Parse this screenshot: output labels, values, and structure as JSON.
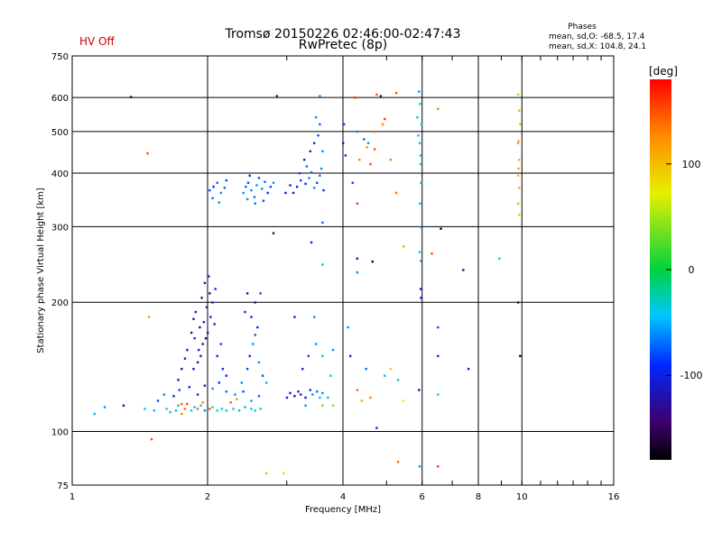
{
  "chart_data": {
    "type": "scatter",
    "title": "Tromsø 20150226 02:46:00-02:47:43",
    "subtitle": "RwPretec (8p)",
    "status_text": "HV Off",
    "status_color": "#cc0000",
    "xlabel": "Frequency [MHz]",
    "ylabel": "Stationary phase Virtual Height [km]",
    "x_scale": "log",
    "y_scale": "log",
    "xlim": [
      1,
      16
    ],
    "ylim": [
      75,
      750
    ],
    "x_ticks": [
      1,
      2,
      4,
      6,
      8,
      10,
      16
    ],
    "x_ticks_major": [
      2,
      4,
      6,
      8,
      10
    ],
    "y_ticks": [
      75,
      100,
      200,
      300,
      400,
      500,
      600,
      750
    ],
    "grid": true,
    "info": {
      "heading": "Phases",
      "line1": "mean, sd,O: -68.5, 17.4",
      "line2": "mean, sd,X: 104.8, 24.1"
    },
    "colorbar": {
      "label": "[deg]",
      "range": [
        -180,
        180
      ],
      "ticks": [
        100,
        0,
        -100
      ]
    },
    "series": [
      {
        "points": [
          [
            1.62,
            113,
            -40
          ],
          [
            1.65,
            111,
            -30
          ],
          [
            1.7,
            112,
            -45
          ],
          [
            1.72,
            115,
            -20
          ],
          [
            1.75,
            110,
            130
          ],
          [
            1.78,
            113,
            140
          ],
          [
            1.8,
            116,
            150
          ],
          [
            1.84,
            112,
            -40
          ],
          [
            1.87,
            114,
            -50
          ],
          [
            1.9,
            113,
            140
          ],
          [
            1.93,
            115,
            -30
          ],
          [
            1.97,
            112,
            -60
          ],
          [
            2.02,
            113,
            150
          ],
          [
            2.05,
            114,
            -40
          ],
          [
            2.1,
            112,
            -35
          ],
          [
            2.15,
            113,
            -30
          ],
          [
            2.2,
            112,
            -40
          ],
          [
            2.28,
            113,
            -35
          ],
          [
            2.35,
            112,
            -30
          ],
          [
            2.42,
            114,
            -50
          ],
          [
            2.5,
            113,
            -40
          ],
          [
            2.55,
            112,
            -35
          ],
          [
            2.62,
            113,
            -30
          ],
          [
            1.55,
            118,
            -80
          ],
          [
            1.6,
            122,
            -60
          ],
          [
            1.68,
            121,
            -100
          ],
          [
            1.73,
            125,
            -80
          ],
          [
            1.82,
            127,
            -100
          ],
          [
            1.9,
            122,
            -90
          ],
          [
            1.97,
            128,
            -110
          ],
          [
            2.05,
            126,
            -60
          ],
          [
            2.12,
            130,
            -90
          ],
          [
            2.2,
            124,
            -70
          ],
          [
            2.3,
            122,
            -60
          ],
          [
            2.4,
            124,
            -80
          ],
          [
            2.5,
            118,
            -55
          ],
          [
            2.6,
            121,
            -70
          ],
          [
            1.12,
            110,
            -50
          ],
          [
            1.18,
            114,
            -60
          ],
          [
            1.3,
            115,
            -120
          ],
          [
            1.45,
            113,
            -40
          ],
          [
            1.52,
            112,
            -50
          ],
          [
            1.86,
            140,
            -120
          ],
          [
            1.9,
            145,
            -130
          ],
          [
            1.93,
            150,
            -100
          ],
          [
            1.95,
            160,
            -120
          ],
          [
            1.98,
            165,
            -140
          ],
          [
            2.0,
            170,
            -110
          ],
          [
            1.92,
            175,
            -130
          ],
          [
            1.96,
            180,
            -100
          ],
          [
            2.03,
            185,
            -120
          ],
          [
            1.88,
            190,
            -110
          ],
          [
            1.99,
            195,
            -130
          ],
          [
            2.05,
            200,
            -90
          ],
          [
            1.94,
            205,
            -110
          ],
          [
            2.02,
            210,
            -130
          ],
          [
            2.08,
            215,
            -100
          ],
          [
            1.97,
            222,
            -120
          ],
          [
            2.01,
            230,
            -110
          ],
          [
            1.91,
            155,
            -90
          ],
          [
            1.87,
            165,
            -100
          ],
          [
            1.84,
            170,
            -120
          ],
          [
            1.86,
            183,
            -110
          ],
          [
            2.1,
            150,
            -100
          ],
          [
            2.14,
            160,
            -80
          ],
          [
            2.07,
            178,
            -100
          ],
          [
            1.8,
            155,
            -120
          ],
          [
            1.78,
            148,
            -110
          ],
          [
            1.75,
            140,
            -130
          ],
          [
            1.72,
            132,
            -120
          ],
          [
            2.16,
            140,
            -90
          ],
          [
            2.2,
            135,
            -110
          ],
          [
            2.45,
            140,
            -80
          ],
          [
            2.48,
            150,
            -90
          ],
          [
            2.52,
            160,
            -60
          ],
          [
            2.55,
            168,
            -70
          ],
          [
            2.58,
            175,
            -90
          ],
          [
            2.5,
            185,
            -100
          ],
          [
            2.55,
            200,
            -110
          ],
          [
            2.62,
            210,
            -80
          ],
          [
            2.45,
            210,
            -120
          ],
          [
            2.6,
            145,
            -60
          ],
          [
            2.65,
            135,
            -80
          ],
          [
            2.38,
            130,
            -60
          ],
          [
            2.7,
            130,
            -50
          ],
          [
            2.42,
            190,
            -100
          ],
          [
            3.0,
            120,
            -100
          ],
          [
            3.05,
            123,
            -110
          ],
          [
            3.12,
            121,
            -120
          ],
          [
            3.18,
            124,
            -100
          ],
          [
            3.22,
            122,
            -110
          ],
          [
            3.3,
            120,
            -120
          ],
          [
            3.38,
            125,
            -90
          ],
          [
            3.42,
            122,
            -60
          ],
          [
            3.5,
            124,
            -70
          ],
          [
            3.55,
            120,
            -50
          ],
          [
            3.6,
            123,
            -60
          ],
          [
            3.25,
            140,
            -100
          ],
          [
            3.35,
            150,
            -80
          ],
          [
            3.48,
            160,
            -60
          ],
          [
            3.6,
            150,
            -40
          ],
          [
            3.7,
            120,
            -20
          ],
          [
            3.12,
            185,
            -100
          ],
          [
            3.45,
            185,
            -60
          ],
          [
            2.02,
            365,
            -80
          ],
          [
            2.06,
            372,
            -90
          ],
          [
            2.1,
            380,
            -70
          ],
          [
            2.14,
            360,
            -60
          ],
          [
            2.18,
            370,
            -70
          ],
          [
            2.2,
            385,
            -80
          ],
          [
            2.05,
            350,
            -70
          ],
          [
            2.12,
            342,
            -60
          ],
          [
            2.4,
            360,
            -60
          ],
          [
            2.43,
            372,
            -70
          ],
          [
            2.46,
            380,
            -80
          ],
          [
            2.5,
            365,
            -60
          ],
          [
            2.54,
            352,
            -70
          ],
          [
            2.57,
            375,
            -60
          ],
          [
            2.6,
            390,
            -80
          ],
          [
            2.64,
            368,
            -60
          ],
          [
            2.68,
            382,
            -70
          ],
          [
            2.72,
            360,
            -90
          ],
          [
            2.76,
            372,
            -80
          ],
          [
            2.8,
            380,
            -60
          ],
          [
            2.45,
            348,
            -60
          ],
          [
            2.55,
            340,
            -70
          ],
          [
            2.66,
            345,
            -80
          ],
          [
            2.48,
            395,
            -90
          ],
          [
            3.1,
            360,
            -110
          ],
          [
            3.16,
            372,
            -100
          ],
          [
            3.22,
            385,
            -80
          ],
          [
            3.3,
            378,
            -90
          ],
          [
            3.36,
            390,
            -60
          ],
          [
            3.4,
            402,
            -70
          ],
          [
            3.45,
            370,
            -60
          ],
          [
            3.5,
            380,
            -80
          ],
          [
            3.55,
            395,
            -70
          ],
          [
            3.58,
            410,
            -60
          ],
          [
            3.62,
            365,
            -90
          ],
          [
            3.2,
            400,
            -80
          ],
          [
            3.28,
            430,
            -100
          ],
          [
            3.38,
            450,
            -110
          ],
          [
            3.45,
            470,
            -90
          ],
          [
            3.52,
            490,
            -80
          ],
          [
            3.55,
            520,
            -70
          ],
          [
            3.48,
            540,
            -60
          ],
          [
            3.6,
            450,
            -60
          ],
          [
            3.32,
            415,
            -70
          ],
          [
            2.98,
            360,
            -120
          ],
          [
            3.05,
            375,
            -100
          ],
          [
            4.0,
            470,
            -110
          ],
          [
            4.02,
            520,
            -80
          ],
          [
            4.05,
            440,
            -90
          ],
          [
            4.3,
            500,
            -60
          ],
          [
            4.45,
            480,
            -70
          ],
          [
            4.55,
            470,
            -60
          ],
          [
            4.2,
            380,
            -80
          ],
          [
            4.7,
            455,
            150
          ],
          [
            4.72,
            500,
            140
          ],
          [
            4.9,
            520,
            130
          ],
          [
            4.75,
            610,
            150
          ],
          [
            4.95,
            535,
            160
          ],
          [
            4.25,
            600,
            160
          ],
          [
            4.35,
            430,
            130
          ],
          [
            4.6,
            420,
            150
          ],
          [
            4.52,
            460,
            120
          ],
          [
            5.1,
            430,
            130
          ],
          [
            5.25,
            360,
            140
          ],
          [
            5.85,
            540,
            -30
          ],
          [
            5.88,
            490,
            -40
          ],
          [
            5.92,
            470,
            -30
          ],
          [
            5.95,
            440,
            -50
          ],
          [
            5.9,
            620,
            -60
          ],
          [
            5.93,
            580,
            -40
          ],
          [
            5.97,
            520,
            -30
          ],
          [
            5.95,
            420,
            -35
          ],
          [
            5.96,
            380,
            -45
          ],
          [
            5.93,
            340,
            -50
          ],
          [
            5.95,
            300,
            -55
          ],
          [
            5.92,
            262,
            -40
          ],
          [
            5.96,
            250,
            -60
          ],
          [
            5.95,
            215,
            -100
          ],
          [
            5.96,
            205,
            -110
          ],
          [
            9.8,
            610,
            100
          ],
          [
            9.85,
            560,
            110
          ],
          [
            9.9,
            520,
            100
          ],
          [
            9.8,
            470,
            110
          ],
          [
            9.85,
            430,
            105
          ],
          [
            9.82,
            410,
            110
          ],
          [
            9.8,
            395,
            100
          ],
          [
            9.85,
            370,
            105
          ],
          [
            9.8,
            340,
            110
          ],
          [
            9.85,
            320,
            100
          ],
          [
            9.82,
            475,
            110
          ],
          [
            9.9,
            150,
            -160
          ],
          [
            9.8,
            200,
            -150
          ],
          [
            2.85,
            605,
            -130
          ],
          [
            3.55,
            605,
            -60
          ],
          [
            4.85,
            605,
            -140
          ],
          [
            5.25,
            615,
            150
          ],
          [
            6.5,
            565,
            130
          ],
          [
            6.6,
            297,
            -180
          ],
          [
            8.9,
            253,
            -40
          ],
          [
            7.4,
            238,
            -130
          ],
          [
            6.3,
            260,
            150
          ],
          [
            5.45,
            270,
            110
          ],
          [
            4.3,
            253,
            -120
          ],
          [
            4.3,
            235,
            -60
          ],
          [
            4.3,
            340,
            160
          ],
          [
            4.65,
            249,
            -170
          ],
          [
            3.6,
            245,
            -20
          ],
          [
            2.8,
            290,
            -140
          ],
          [
            3.4,
            276,
            -100
          ],
          [
            3.6,
            307,
            -70
          ],
          [
            1.35,
            602,
            -160
          ],
          [
            1.47,
            445,
            150
          ],
          [
            1.48,
            185,
            120
          ],
          [
            1.5,
            96,
            150
          ],
          [
            4.75,
            102,
            -100
          ],
          [
            5.3,
            85,
            140
          ],
          [
            6.5,
            83,
            160
          ],
          [
            5.92,
            83,
            -60
          ],
          [
            6.5,
            175,
            -80
          ],
          [
            6.5,
            150,
            -90
          ],
          [
            7.6,
            140,
            -100
          ],
          [
            5.9,
            125,
            -130
          ],
          [
            4.3,
            125,
            140
          ],
          [
            4.4,
            118,
            110
          ],
          [
            4.6,
            120,
            130
          ],
          [
            5.1,
            140,
            90
          ],
          [
            5.45,
            118,
            70
          ],
          [
            6.5,
            122,
            -40
          ],
          [
            3.8,
            155,
            -60
          ],
          [
            4.15,
            150,
            -90
          ],
          [
            4.5,
            140,
            -70
          ],
          [
            4.95,
            135,
            -50
          ],
          [
            5.3,
            132,
            -30
          ],
          [
            2.7,
            80,
            50
          ],
          [
            2.95,
            80,
            60
          ],
          [
            3.75,
            135,
            -40
          ],
          [
            4.1,
            175,
            -60
          ],
          [
            3.3,
            115,
            -60
          ],
          [
            3.6,
            115,
            30
          ],
          [
            3.8,
            115,
            40
          ],
          [
            2.25,
            117,
            140
          ],
          [
            2.32,
            119,
            120
          ],
          [
            1.95,
            117,
            130
          ],
          [
            1.75,
            116,
            140
          ]
        ]
      }
    ]
  }
}
